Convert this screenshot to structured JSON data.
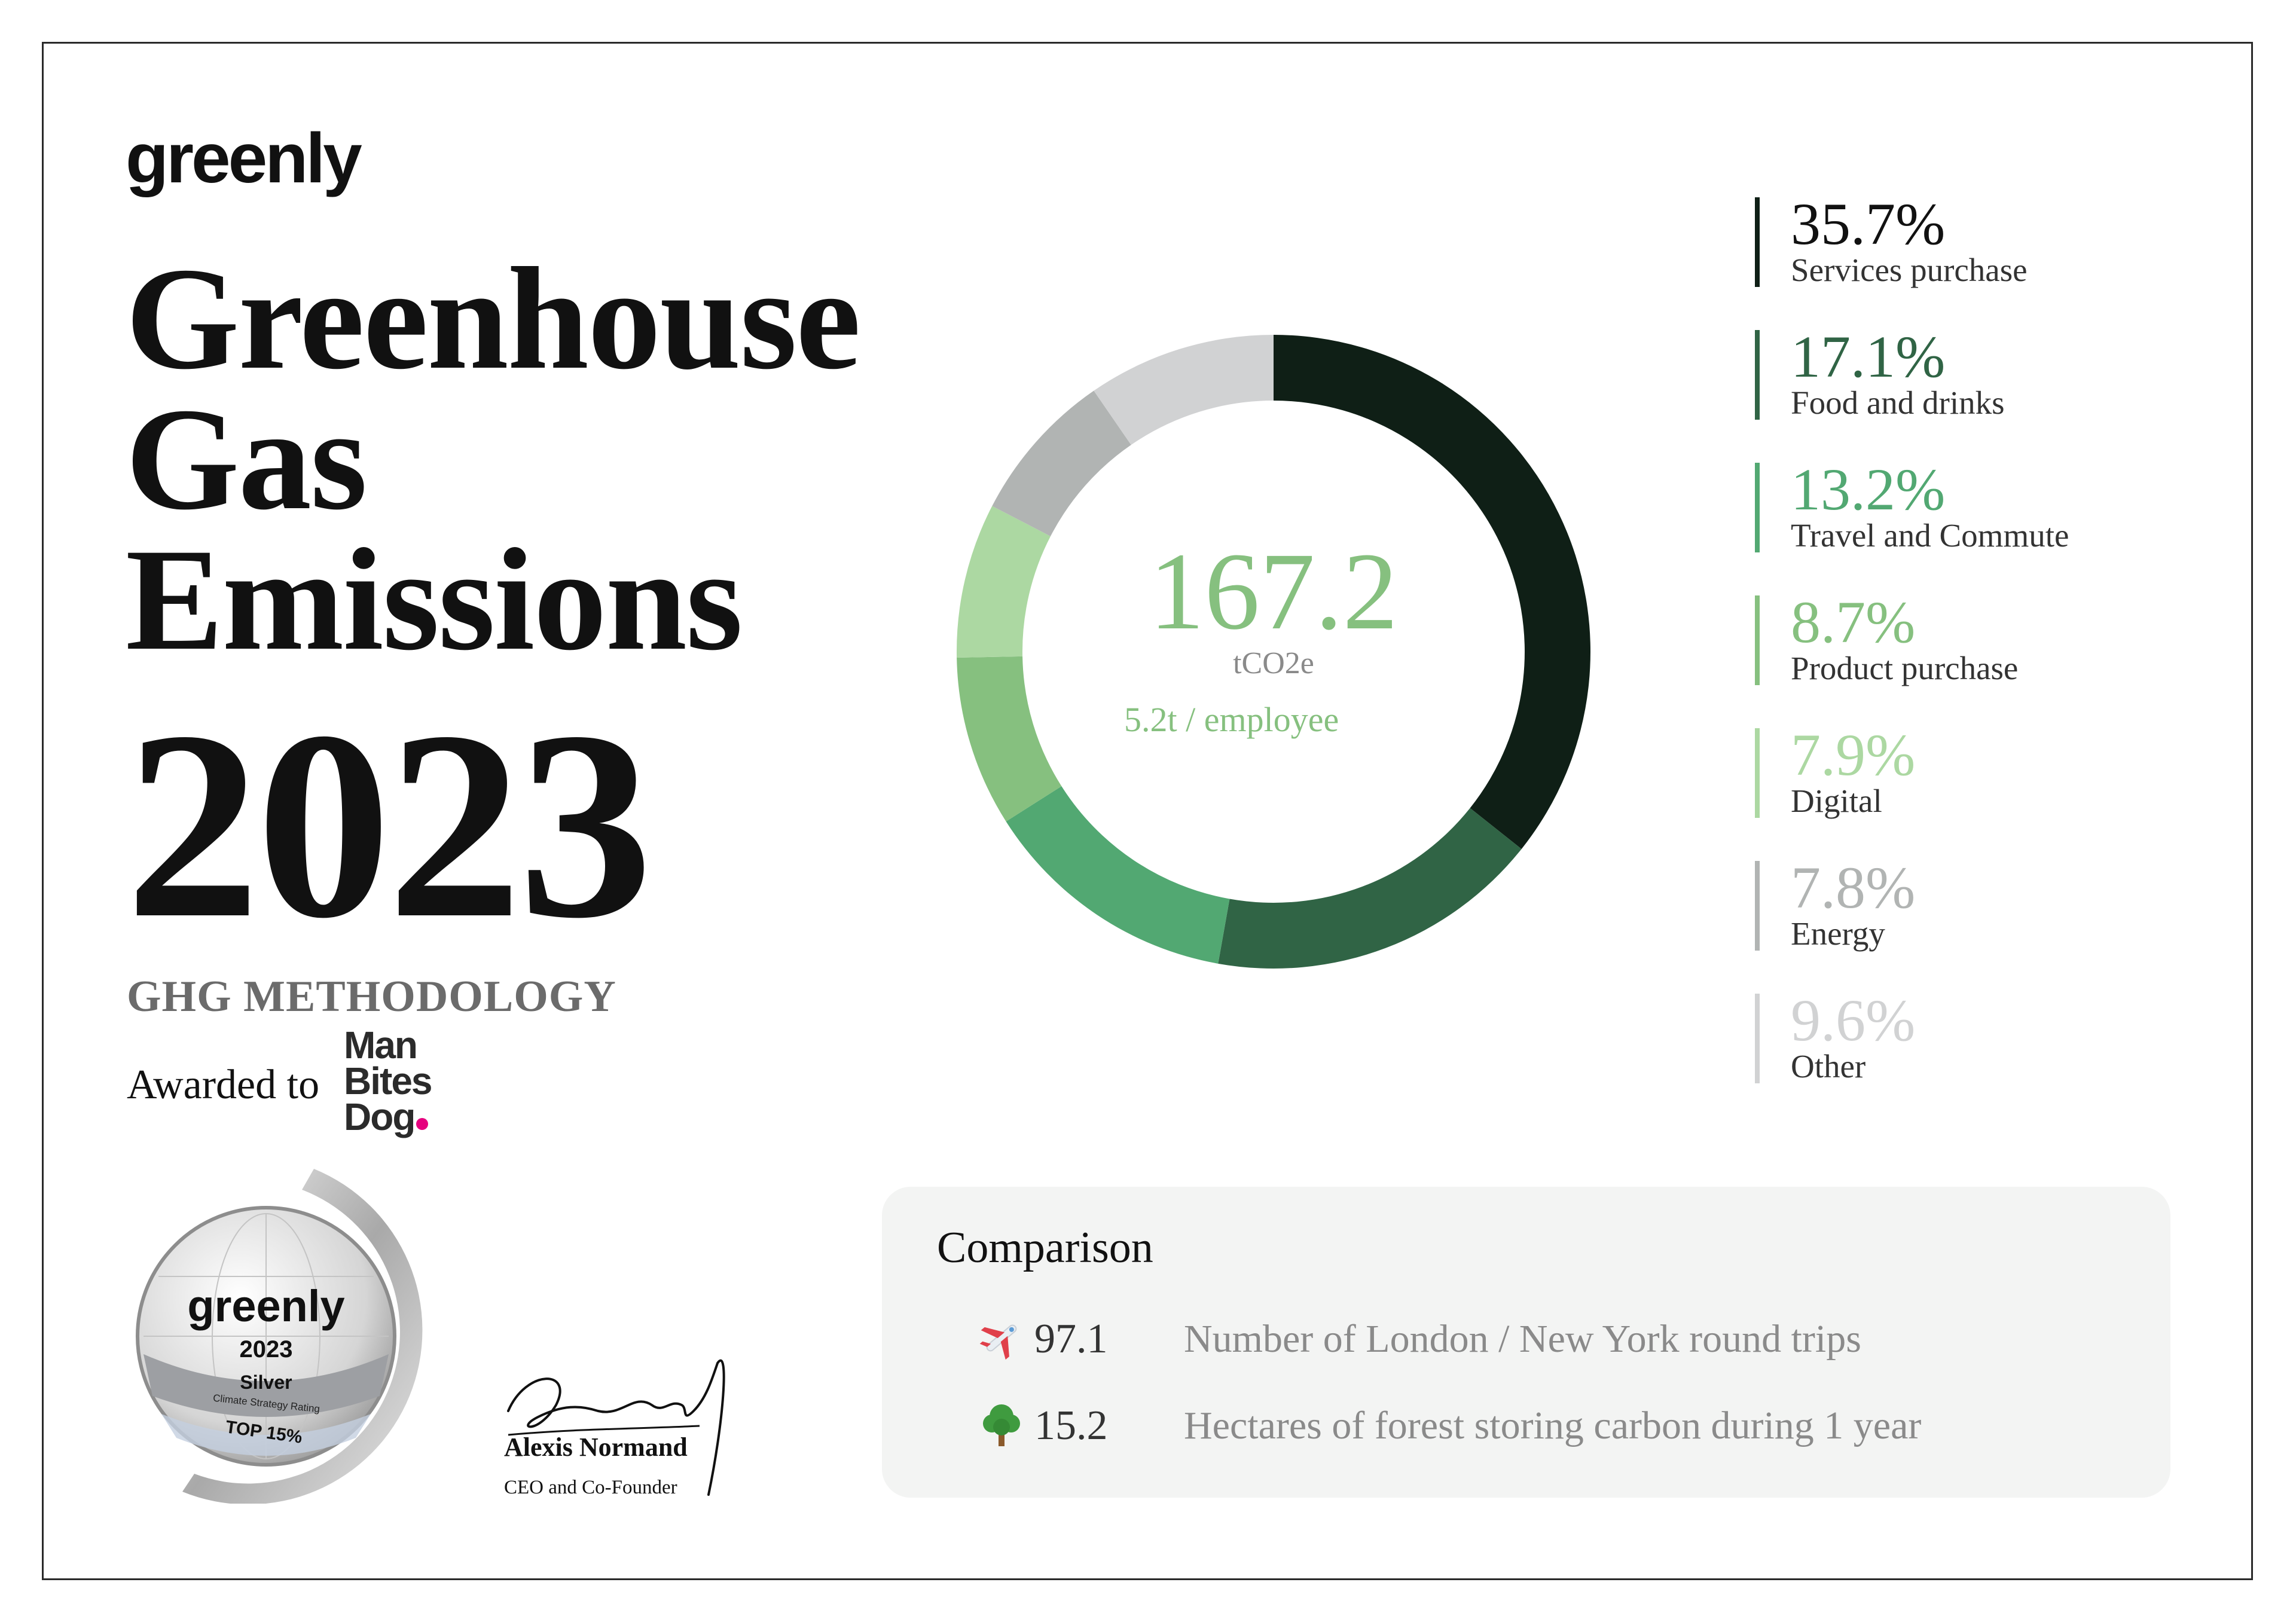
{
  "brand": {
    "logo_text": "greenly"
  },
  "title": {
    "line1": "Greenhouse",
    "line2": "Gas",
    "line3": "Emissions",
    "year": "2023"
  },
  "methodology": "GHG METHODOLOGY",
  "award": {
    "awarded_to_label": "Awarded to",
    "company_lines": [
      "Man",
      "Bites",
      "Dog"
    ]
  },
  "badge": {
    "brand": "greenly",
    "year": "2023",
    "tier": "Silver",
    "subtitle": "Climate Strategy Rating",
    "rank": "TOP 15%"
  },
  "signature": {
    "name": "Alexis Normand",
    "role": "CEO and Co-Founder"
  },
  "chart_data": {
    "type": "pie",
    "total_value": "167.2",
    "total_unit": "tCO2e",
    "per_employee": "5.2t / employee",
    "slices": [
      {
        "pct_label": "35.7%",
        "value": 35.7,
        "label": "Services purchase",
        "color": "#0f1f16"
      },
      {
        "pct_label": "17.1%",
        "value": 17.1,
        "label": "Food and drinks",
        "color": "#306445"
      },
      {
        "pct_label": "13.2%",
        "value": 13.2,
        "label": "Travel and Commute",
        "color": "#52a872"
      },
      {
        "pct_label": "8.7%",
        "value": 8.7,
        "label": "Product purchase",
        "color": "#86c07f"
      },
      {
        "pct_label": "7.9%",
        "value": 7.9,
        "label": "Digital",
        "color": "#acd8a2"
      },
      {
        "pct_label": "7.8%",
        "value": 7.8,
        "label": "Energy",
        "color": "#b1b4b3"
      },
      {
        "pct_label": "9.6%",
        "value": 9.6,
        "label": "Other",
        "color": "#d1d2d3"
      }
    ],
    "legend_position": "right"
  },
  "comparison": {
    "title": "Comparison",
    "rows": [
      {
        "icon": "airplane-icon",
        "value": "97.1",
        "description": "Number of London / New York round trips"
      },
      {
        "icon": "tree-icon",
        "value": "15.2",
        "description": "Hectares of forest storing carbon during 1 year"
      }
    ]
  }
}
